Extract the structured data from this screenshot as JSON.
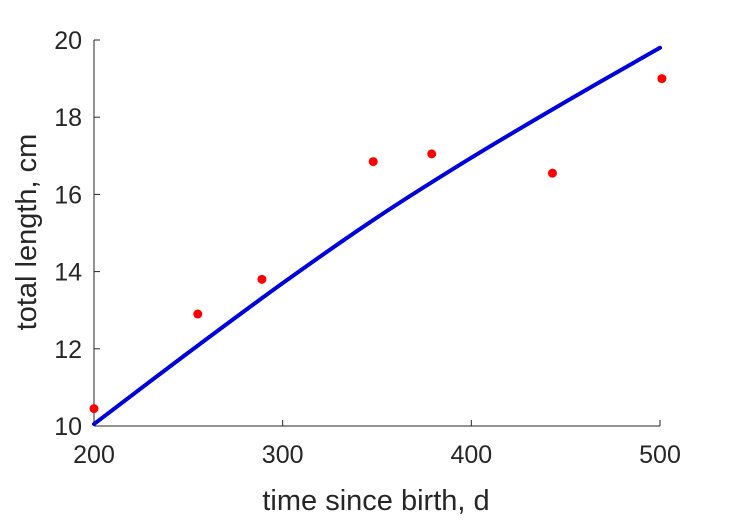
{
  "chart_data": {
    "type": "scatter",
    "xlabel": "time since birth, d",
    "ylabel": "total length, cm",
    "xlim": [
      200,
      500
    ],
    "ylim": [
      10,
      20
    ],
    "x_ticks": [
      200,
      300,
      400,
      500
    ],
    "y_ticks": [
      10,
      12,
      14,
      16,
      18,
      20
    ],
    "grid": false,
    "series": [
      {
        "kind": "scatter",
        "color": "#ff0000",
        "x": [
          200,
          255,
          289,
          348,
          379,
          443,
          501
        ],
        "y": [
          10.45,
          12.9,
          13.8,
          16.85,
          17.05,
          16.55,
          19.0
        ]
      },
      {
        "kind": "line",
        "color": "#0000dd",
        "x": [
          200,
          250,
          300,
          350,
          400,
          450,
          500
        ],
        "y": [
          10.05,
          11.9,
          13.7,
          15.4,
          16.95,
          18.4,
          19.8
        ]
      }
    ]
  }
}
